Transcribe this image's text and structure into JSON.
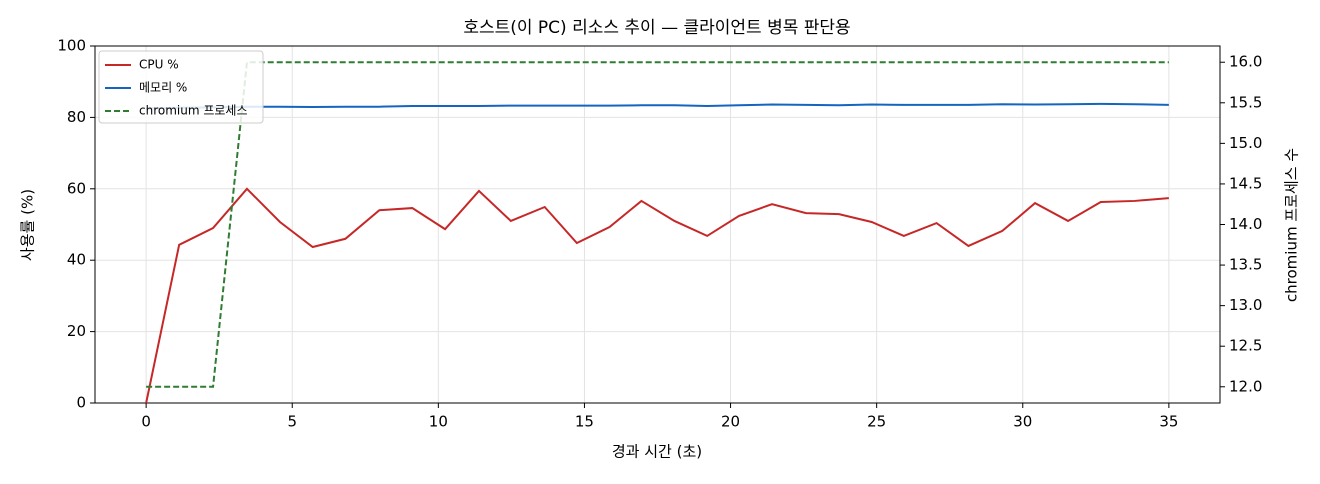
{
  "chart_data": {
    "type": "line",
    "title": "호스트(이 PC) 리소스 추이 — 클라이언트 병목 판단용",
    "xlabel": "경과 시간 (초)",
    "ylabel": "사용률 (%)",
    "y2label": "chromium 프로세스 수",
    "x": [
      0,
      1.13,
      2.29,
      3.45,
      4.58,
      5.7,
      6.82,
      7.98,
      9.11,
      10.23,
      11.39,
      12.48,
      13.64,
      14.74,
      15.86,
      16.95,
      18.08,
      19.2,
      20.29,
      21.42,
      22.58,
      23.71,
      24.83,
      25.93,
      27.05,
      28.14,
      29.3,
      30.42,
      31.55,
      32.67,
      33.83,
      35.0
    ],
    "series": [
      {
        "name": "CPU %",
        "color": "#c62828",
        "style": "solid",
        "axis": "y",
        "values": [
          0,
          44.3,
          49,
          60,
          50.7,
          43.7,
          46,
          54,
          54.6,
          48.7,
          59.4,
          51,
          54.9,
          44.8,
          49.3,
          56.6,
          51,
          46.8,
          52.4,
          55.7,
          53.2,
          52.9,
          50.7,
          46.8,
          50.4,
          44,
          48.2,
          56,
          51,
          56.3,
          56.6,
          57.4
        ]
      },
      {
        "name": "메모리 %",
        "color": "#1565c0",
        "style": "solid",
        "axis": "y",
        "values": [
          82.5,
          82.7,
          82.8,
          83,
          83,
          82.9,
          83,
          83,
          83.2,
          83.2,
          83.2,
          83.3,
          83.3,
          83.3,
          83.3,
          83.4,
          83.4,
          83.2,
          83.4,
          83.6,
          83.5,
          83.4,
          83.6,
          83.5,
          83.5,
          83.5,
          83.7,
          83.6,
          83.7,
          83.8,
          83.7,
          83.5
        ]
      },
      {
        "name": "chromium 프로세스",
        "color": "#2e7d32",
        "style": "dashed",
        "axis": "y2",
        "values": [
          12,
          12,
          12,
          16,
          16,
          16,
          16,
          16,
          16,
          16,
          16,
          16,
          16,
          16,
          16,
          16,
          16,
          16,
          16,
          16,
          16,
          16,
          16,
          16,
          16,
          16,
          16,
          16,
          16,
          16,
          16,
          16
        ]
      }
    ],
    "xlim": [
      -1.75,
      36.75
    ],
    "xticks": [
      0,
      5,
      10,
      15,
      20,
      25,
      30,
      35
    ],
    "ylim": [
      0,
      100
    ],
    "yticks": [
      0,
      20,
      40,
      60,
      80,
      100
    ],
    "y2lim": [
      11.8,
      16.2
    ],
    "y2ticks": [
      {
        "value": 12,
        "label": "12.0"
      },
      12.5,
      {
        "value": 13,
        "label": "13.0"
      },
      13.5,
      {
        "value": 14,
        "label": "14.0"
      },
      14.5,
      {
        "value": 15,
        "label": "15.0"
      },
      15.5,
      {
        "value": 16,
        "label": "16.0"
      }
    ],
    "grid": true,
    "legend": "upper-left"
  }
}
